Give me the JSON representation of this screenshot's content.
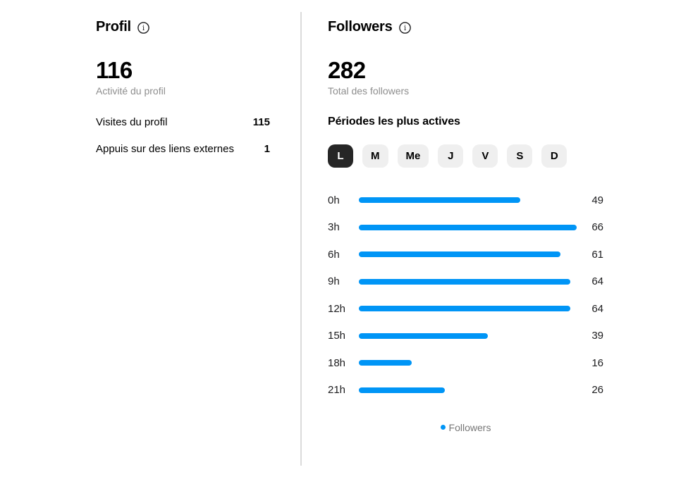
{
  "colors": {
    "accent_blue": "#0095f6",
    "selected_tab_bg": "#262626",
    "inactive_tab_bg": "#efefef",
    "muted_text": "#8e8e8e",
    "divider": "#dbdbdb"
  },
  "profile_panel": {
    "title": "Profil",
    "info_icon": "info-icon",
    "metric_value": "116",
    "metric_label": "Activité du profil",
    "rows": [
      {
        "label": "Visites du profil",
        "value": "115"
      },
      {
        "label": "Appuis sur des liens externes",
        "value": "1"
      }
    ]
  },
  "followers_panel": {
    "title": "Followers",
    "info_icon": "info-icon",
    "metric_value": "282",
    "metric_label": "Total des followers",
    "section_title": "Périodes les plus actives",
    "day_tabs": [
      {
        "label": "L",
        "selected": true
      },
      {
        "label": "M",
        "selected": false
      },
      {
        "label": "Me",
        "selected": false
      },
      {
        "label": "J",
        "selected": false
      },
      {
        "label": "V",
        "selected": false
      },
      {
        "label": "S",
        "selected": false
      },
      {
        "label": "D",
        "selected": false
      }
    ],
    "legend_label": "Followers"
  },
  "chart_data": {
    "type": "bar",
    "orientation": "horizontal",
    "title": "Périodes les plus actives",
    "categories": [
      "0h",
      "3h",
      "6h",
      "9h",
      "12h",
      "15h",
      "18h",
      "21h"
    ],
    "values": [
      49,
      66,
      61,
      64,
      64,
      39,
      16,
      26
    ],
    "series_name": "Followers",
    "xlim": [
      0,
      66
    ],
    "bar_color": "#0095f6",
    "value_labels_shown": true,
    "legend_position": "bottom-center"
  }
}
